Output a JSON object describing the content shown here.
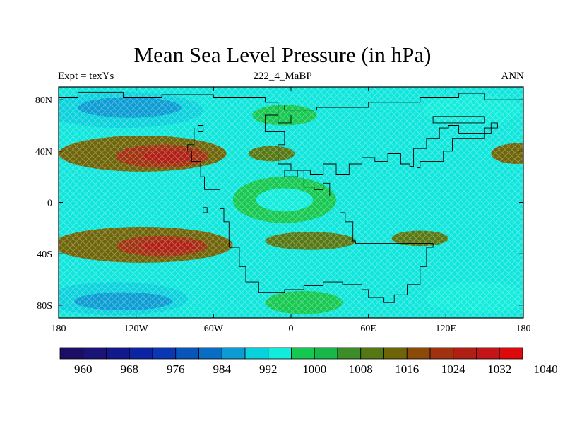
{
  "title": "Mean Sea Level Pressure (in hPa)",
  "left_string": "Expt = texYs",
  "center_string": "222_4_MaBP",
  "right_string": "ANN",
  "map": {
    "lon_range": [
      -180,
      180
    ],
    "lat_range": [
      -90,
      90
    ],
    "x_ticks": [
      {
        "value": -180,
        "label": "180"
      },
      {
        "value": -120,
        "label": "120W"
      },
      {
        "value": -60,
        "label": "60W"
      },
      {
        "value": 0,
        "label": "0"
      },
      {
        "value": 60,
        "label": "60E"
      },
      {
        "value": 120,
        "label": "120E"
      },
      {
        "value": 180,
        "label": "180"
      }
    ],
    "y_ticks": [
      {
        "value": 80,
        "label": "80N"
      },
      {
        "value": 40,
        "label": "40N"
      },
      {
        "value": 0,
        "label": "0"
      },
      {
        "value": -40,
        "label": "40S"
      },
      {
        "value": -80,
        "label": "80S"
      }
    ],
    "background_color": "#0ee6dc",
    "coastline_color": "#000000",
    "stipple_pattern": "diagonal cross-hatch"
  },
  "colorbar": {
    "colors": [
      "#1c0e64",
      "#1a1478",
      "#12198c",
      "#0c23a4",
      "#0a37b4",
      "#0856bc",
      "#086ec4",
      "#0a9cd2",
      "#0ad2dc",
      "#12ecdc",
      "#14c850",
      "#18b848",
      "#3c8c28",
      "#557814",
      "#6e6408",
      "#8c4a08",
      "#a03210",
      "#b01e14",
      "#c4141a",
      "#dc0a0a"
    ],
    "labels": [
      {
        "index": 1,
        "text": "960"
      },
      {
        "index": 3,
        "text": "968"
      },
      {
        "index": 5,
        "text": "976"
      },
      {
        "index": 7,
        "text": "984"
      },
      {
        "index": 9,
        "text": "992"
      },
      {
        "index": 11,
        "text": "1000"
      },
      {
        "index": 13,
        "text": "1008"
      },
      {
        "index": 15,
        "text": "1016"
      },
      {
        "index": 17,
        "text": "1024"
      },
      {
        "index": 19,
        "text": "1032"
      },
      {
        "index": 21,
        "text": "1040"
      }
    ]
  },
  "pressure_field": [
    {
      "name": "north-polar-low-west",
      "lon": -130,
      "lat": 72,
      "rx": 62,
      "ry": 14,
      "level": 986
    },
    {
      "name": "north-polar-low-west-core",
      "lon": -125,
      "lat": 74,
      "rx": 40,
      "ry": 8,
      "level": 982
    },
    {
      "name": "north-polar-low-east",
      "lon": 140,
      "lat": 72,
      "rx": 38,
      "ry": 12,
      "level": 988
    },
    {
      "name": "north-low-center",
      "lon": -5,
      "lat": 68,
      "rx": 25,
      "ry": 8,
      "level": 992
    },
    {
      "name": "north-subtropical-high",
      "lon": -115,
      "lat": 38,
      "rx": 65,
      "ry": 14,
      "level": 1010
    },
    {
      "name": "north-subtropical-high-core",
      "lon": -100,
      "lat": 36,
      "rx": 36,
      "ry": 9,
      "level": 1016
    },
    {
      "name": "north-subtropical-high-inner",
      "lon": -95,
      "lat": 36,
      "rx": 20,
      "ry": 5,
      "level": 1022
    },
    {
      "name": "north-high-east-edge",
      "lon": 175,
      "lat": 38,
      "rx": 20,
      "ry": 8,
      "level": 1008
    },
    {
      "name": "north-high-mid",
      "lon": -15,
      "lat": 38,
      "rx": 18,
      "ry": 6,
      "level": 1007
    },
    {
      "name": "equatorial-low",
      "lon": -5,
      "lat": 2,
      "rx": 40,
      "ry": 18,
      "level": 993
    },
    {
      "name": "equatorial-low-core",
      "lon": -5,
      "lat": 2,
      "rx": 22,
      "ry": 9,
      "level": 989
    },
    {
      "name": "south-subtropical-high",
      "lon": -115,
      "lat": -33,
      "rx": 70,
      "ry": 14,
      "level": 1010
    },
    {
      "name": "south-subtropical-high-core",
      "lon": -100,
      "lat": -34,
      "rx": 35,
      "ry": 8,
      "level": 1016
    },
    {
      "name": "south-subtropical-high-inner",
      "lon": -95,
      "lat": -34,
      "rx": 22,
      "ry": 4,
      "level": 1022
    },
    {
      "name": "south-high-mid",
      "lon": 15,
      "lat": -30,
      "rx": 35,
      "ry": 7,
      "level": 1005
    },
    {
      "name": "south-high-east",
      "lon": 100,
      "lat": -28,
      "rx": 22,
      "ry": 6,
      "level": 1005
    },
    {
      "name": "south-polar-low-west",
      "lon": -135,
      "lat": -75,
      "rx": 55,
      "ry": 13,
      "level": 986
    },
    {
      "name": "south-polar-low-west-core",
      "lon": -130,
      "lat": -77,
      "rx": 38,
      "ry": 7,
      "level": 982
    },
    {
      "name": "south-polar-low-east",
      "lon": 145,
      "lat": -74,
      "rx": 40,
      "ry": 12,
      "level": 988
    },
    {
      "name": "south-low-center",
      "lon": 10,
      "lat": -78,
      "rx": 30,
      "ry": 9,
      "level": 994
    }
  ],
  "coastlines": [
    {
      "name": "laurasia-west-coast",
      "points": [
        [
          -75,
          58
        ],
        [
          -75,
          45
        ],
        [
          -80,
          45
        ],
        [
          -80,
          40
        ],
        [
          -77,
          40
        ],
        [
          -77,
          32
        ],
        [
          -70,
          32
        ],
        [
          -70,
          20
        ],
        [
          -67,
          20
        ],
        [
          -67,
          10
        ],
        [
          -55,
          10
        ],
        [
          -55,
          -5
        ],
        [
          -52,
          -5
        ],
        [
          -52,
          -15
        ],
        [
          -48,
          -15
        ],
        [
          -48,
          -35
        ],
        [
          -40,
          -35
        ],
        [
          -40,
          -50
        ],
        [
          -35,
          -50
        ],
        [
          -35,
          -62
        ],
        [
          -25,
          -62
        ],
        [
          -25,
          -70
        ],
        [
          -5,
          -70
        ],
        [
          -5,
          -68
        ],
        [
          10,
          -68
        ],
        [
          10,
          -65
        ],
        [
          25,
          -65
        ],
        [
          25,
          -62
        ],
        [
          40,
          -62
        ],
        [
          40,
          -64
        ],
        [
          55,
          -64
        ],
        [
          55,
          -68
        ],
        [
          60,
          -68
        ],
        [
          60,
          -74
        ],
        [
          72,
          -74
        ],
        [
          72,
          -78
        ],
        [
          80,
          -78
        ],
        [
          80,
          -72
        ],
        [
          90,
          -72
        ],
        [
          90,
          -64
        ],
        [
          100,
          -64
        ],
        [
          100,
          -50
        ],
        [
          105,
          -50
        ],
        [
          105,
          -35
        ],
        [
          110,
          -35
        ],
        [
          110,
          -32
        ],
        [
          50,
          -32
        ],
        [
          50,
          -30
        ],
        [
          48,
          -30
        ],
        [
          48,
          -15
        ],
        [
          42,
          -15
        ],
        [
          42,
          -8
        ],
        [
          38,
          -8
        ],
        [
          38,
          5
        ],
        [
          30,
          5
        ],
        [
          30,
          15
        ],
        [
          25,
          15
        ],
        [
          25,
          10
        ],
        [
          18,
          10
        ],
        [
          18,
          12
        ],
        [
          10,
          12
        ],
        [
          10,
          25
        ],
        [
          0,
          25
        ],
        [
          0,
          30
        ],
        [
          -10,
          30
        ],
        [
          -10,
          45
        ],
        [
          -5,
          45
        ],
        [
          -5,
          55
        ],
        [
          -20,
          55
        ],
        [
          -20,
          68
        ],
        [
          -10,
          68
        ],
        [
          -10,
          78
        ],
        [
          -20,
          78
        ],
        [
          -20,
          82
        ],
        [
          -60,
          82
        ],
        [
          -60,
          84
        ],
        [
          -100,
          84
        ],
        [
          -100,
          82
        ],
        [
          -130,
          82
        ],
        [
          -130,
          86
        ],
        [
          -165,
          86
        ],
        [
          -165,
          82
        ],
        [
          -180,
          82
        ]
      ]
    },
    {
      "name": "eurasia-north-coast",
      "points": [
        [
          180,
          80
        ],
        [
          150,
          80
        ],
        [
          150,
          85
        ],
        [
          130,
          85
        ],
        [
          130,
          82
        ],
        [
          100,
          82
        ],
        [
          100,
          78
        ],
        [
          60,
          78
        ],
        [
          60,
          74
        ],
        [
          20,
          74
        ],
        [
          20,
          72
        ],
        [
          -5,
          72
        ],
        [
          -5,
          76
        ],
        [
          -15,
          76
        ]
      ]
    },
    {
      "name": "tethys-north-coast",
      "points": [
        [
          5,
          25
        ],
        [
          15,
          25
        ],
        [
          15,
          22
        ],
        [
          25,
          22
        ],
        [
          25,
          30
        ],
        [
          35,
          30
        ],
        [
          35,
          22
        ],
        [
          45,
          22
        ],
        [
          45,
          30
        ],
        [
          55,
          30
        ],
        [
          55,
          35
        ],
        [
          65,
          35
        ],
        [
          65,
          32
        ],
        [
          75,
          32
        ],
        [
          75,
          38
        ],
        [
          85,
          38
        ],
        [
          85,
          30
        ],
        [
          92,
          30
        ],
        [
          92,
          28
        ],
        [
          95,
          28
        ],
        [
          95,
          42
        ],
        [
          105,
          42
        ],
        [
          105,
          50
        ],
        [
          115,
          50
        ],
        [
          115,
          58
        ],
        [
          122,
          58
        ],
        [
          122,
          60
        ],
        [
          130,
          60
        ],
        [
          130,
          54
        ],
        [
          155,
          54
        ],
        [
          155,
          62
        ],
        [
          160,
          62
        ],
        [
          160,
          58
        ],
        [
          150,
          58
        ],
        [
          150,
          50
        ],
        [
          125,
          50
        ],
        [
          125,
          40
        ],
        [
          118,
          40
        ],
        [
          118,
          32
        ],
        [
          100,
          32
        ],
        [
          100,
          27
        ],
        [
          98,
          27
        ]
      ]
    },
    {
      "name": "arctic-island",
      "points": [
        [
          110,
          65
        ],
        [
          110,
          62
        ],
        [
          150,
          62
        ],
        [
          150,
          67
        ],
        [
          110,
          67
        ],
        [
          110,
          65
        ]
      ]
    },
    {
      "name": "small-island-northwest",
      "points": [
        [
          -72,
          60
        ],
        [
          -72,
          55
        ],
        [
          -68,
          55
        ],
        [
          -68,
          60
        ],
        [
          -72,
          60
        ]
      ]
    },
    {
      "name": "small-island-equator",
      "points": [
        [
          -68,
          -4
        ],
        [
          -68,
          -8
        ],
        [
          -65,
          -8
        ],
        [
          -65,
          -4
        ],
        [
          -68,
          -4
        ]
      ]
    },
    {
      "name": "europe-island",
      "points": [
        [
          -5,
          25
        ],
        [
          -5,
          20
        ],
        [
          5,
          20
        ],
        [
          5,
          25
        ],
        [
          -5,
          25
        ]
      ]
    },
    {
      "name": "north-low-cut",
      "points": [
        [
          -10,
          70
        ],
        [
          -10,
          62
        ],
        [
          0,
          62
        ],
        [
          0,
          68
        ]
      ]
    }
  ]
}
